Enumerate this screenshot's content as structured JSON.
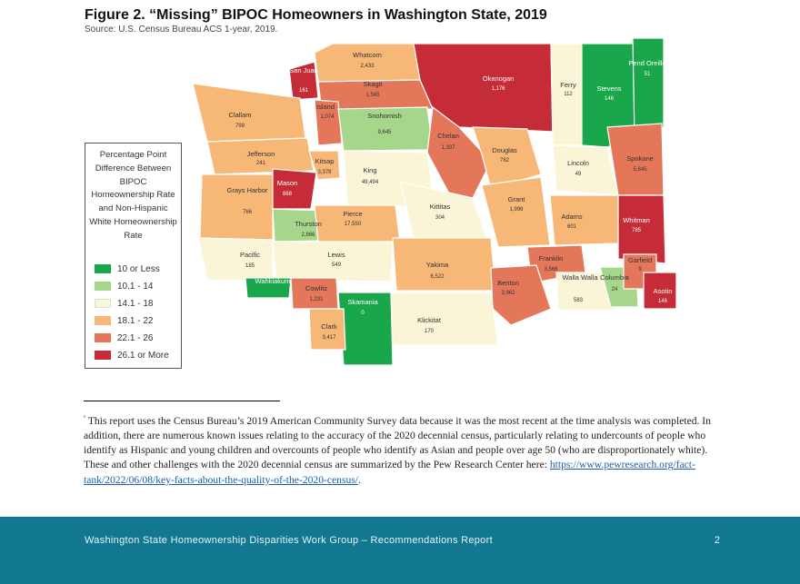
{
  "figure": {
    "title": "Figure 2. “Missing” BIPOC Homeowners in Washington State, 2019",
    "source": "Source: U.S. Census Bureau ACS 1-year, 2019."
  },
  "legend": {
    "title": "Percentage Point Difference Between BIPOC Homeownership Rate and Non-Hispanic White Homeownership Rate",
    "items": [
      {
        "label": "10 or Less",
        "color": "#1aa64a"
      },
      {
        "label": "10.1 - 14",
        "color": "#a6d68a"
      },
      {
        "label": "14.1 - 18",
        "color": "#fbf5d8"
      },
      {
        "label": "18.1 - 22",
        "color": "#f7b777"
      },
      {
        "label": "22.1 - 26",
        "color": "#e4775a"
      },
      {
        "label": "26.1 or More",
        "color": "#c52c38"
      }
    ]
  },
  "counties": {
    "san_juan": {
      "name": "San Juan",
      "value": "161",
      "category": 6
    },
    "whatcom": {
      "name": "Whatcom",
      "value": "2,433",
      "category": 4
    },
    "skagit": {
      "name": "Skagit",
      "value": "1,565",
      "category": 5
    },
    "okanogan": {
      "name": "Okanogan",
      "value": "1,176",
      "category": 6
    },
    "ferry": {
      "name": "Ferry",
      "value": "112",
      "category": 3
    },
    "stevens": {
      "name": "Stevens",
      "value": "146",
      "category": 1
    },
    "pend_oreille": {
      "name": "Pend Oreille",
      "value": "51",
      "category": 1
    },
    "island": {
      "name": "Island",
      "value": "1,074",
      "category": 5
    },
    "clallam": {
      "name": "Clallam",
      "value": "799",
      "category": 4
    },
    "snohomish": {
      "name": "Snohomish",
      "value": "9,645",
      "category": 2
    },
    "chelan": {
      "name": "Chelan",
      "value": "1,337",
      "category": 5
    },
    "douglas": {
      "name": "Douglas",
      "value": "782",
      "category": 4
    },
    "lincoln": {
      "name": "Lincoln",
      "value": "49",
      "category": 3
    },
    "spokane": {
      "name": "Spokane",
      "value": "5,845",
      "category": 5
    },
    "jefferson": {
      "name": "Jefferson",
      "value": "241",
      "category": 4
    },
    "kitsap": {
      "name": "Kitsap",
      "value": "3,378",
      "category": 4
    },
    "king": {
      "name": "King",
      "value": "49,494",
      "category": 3
    },
    "grays_harbor": {
      "name": "Grays Harbor",
      "value": "766",
      "category": 4
    },
    "mason": {
      "name": "Mason",
      "value": "868",
      "category": 6
    },
    "kittitas": {
      "name": "Kittitas",
      "value": "304",
      "category": 3
    },
    "grant": {
      "name": "Grant",
      "value": "1,998",
      "category": 4
    },
    "adams": {
      "name": "Adams",
      "value": "601",
      "category": 4
    },
    "whitman": {
      "name": "Whitman",
      "value": "785",
      "category": 6
    },
    "thurston": {
      "name": "Thurston",
      "value": "2,866",
      "category": 2
    },
    "pierce": {
      "name": "Pierce",
      "value": "17,550",
      "category": 4
    },
    "pacific": {
      "name": "Pacific",
      "value": "185",
      "category": 3
    },
    "lewis": {
      "name": "Lewis",
      "value": "549",
      "category": 3
    },
    "wahkiakum": {
      "name": "Wahkiakum",
      "value": "",
      "category": 1
    },
    "cowlitz": {
      "name": "Cowlitz",
      "value": "1,231",
      "category": 5
    },
    "yakima": {
      "name": "Yakima",
      "value": "6,522",
      "category": 4
    },
    "franklin": {
      "name": "Franklin",
      "value": "3,566",
      "category": 5
    },
    "walla_walla": {
      "name": "Walla Walla",
      "value": "583",
      "category": 3
    },
    "columbia": {
      "name": "Columbia",
      "value": "24",
      "category": 2
    },
    "garfield": {
      "name": "Garfield",
      "value": "9",
      "category": 5
    },
    "asotin": {
      "name": "Asotin",
      "value": "146",
      "category": 6
    },
    "benton": {
      "name": "Benton",
      "value": "3,962",
      "category": 5
    },
    "skamania": {
      "name": "Skamania",
      "value": "0",
      "category": 1
    },
    "clark": {
      "name": "Clark",
      "value": "3,417",
      "category": 4
    },
    "klickitat": {
      "name": "Klickitat",
      "value": "170",
      "category": 3
    }
  },
  "footnote": {
    "marker": "¹",
    "text": "This report uses the Census Bureau’s 2019 American Community Survey data because it was the most recent at the time analysis was completed. In addition, there are numerous known issues relating to the accuracy of the 2020 decennial census, particularly relating to undercounts of people who identify as Hispanic and young children and overcounts of people who identify as Asian and people over age 50 (who are disproportionately white). These and other challenges with the 2020 decennial census are summarized by the Pew Research Center here:",
    "link": "https://www.pewresearch.org/fact-tank/2022/06/08/key-facts-about-the-quality-of-the-2020-census/",
    "link_suffix": "."
  },
  "footer": {
    "text": "Washington State Homeownership Disparities Work Group – Recommendations Report",
    "page": "2"
  }
}
